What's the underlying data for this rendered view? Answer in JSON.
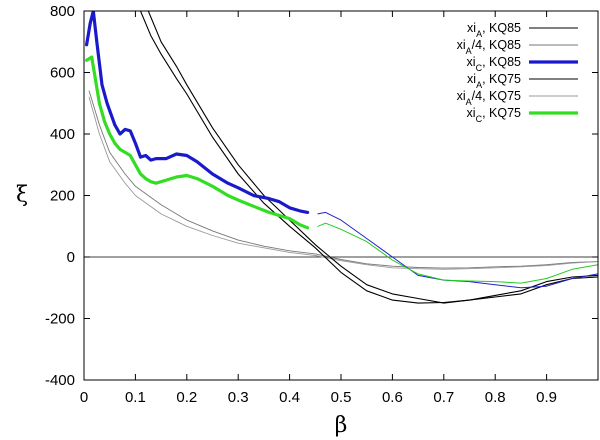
{
  "chart_data": {
    "type": "line",
    "xlabel": "β",
    "ylabel": "ξ",
    "xlim": [
      0,
      1.0
    ],
    "ylim": [
      -400,
      800
    ],
    "x_ticks": [
      0,
      0.1,
      0.2,
      0.3,
      0.4,
      0.5,
      0.6,
      0.7,
      0.8,
      0.9
    ],
    "x_tick_labels": [
      "0",
      "0.1",
      "0.2",
      "0.3",
      "0.4",
      "0.5",
      "0.6",
      "0.7",
      "0.8",
      "0.9"
    ],
    "y_ticks": [
      -400,
      -200,
      0,
      200,
      400,
      600,
      800
    ],
    "y_tick_labels": [
      "-400",
      "-200",
      "0",
      "200",
      "400",
      "600",
      "800"
    ],
    "zero_line": true,
    "grid": false,
    "legend_position": "top-right",
    "series": [
      {
        "name": "xi_A, KQ85",
        "legend_main": "xi",
        "legend_sub": "A",
        "legend_tail": ", KQ85",
        "color": "#000000",
        "width": 1.1,
        "x": [
          0.125,
          0.15,
          0.18,
          0.2,
          0.25,
          0.3,
          0.35,
          0.4,
          0.45,
          0.5,
          0.55,
          0.6,
          0.65,
          0.7,
          0.75,
          0.8,
          0.85,
          0.9,
          0.95,
          1.0
        ],
        "y": [
          800,
          700,
          620,
          560,
          420,
          300,
          200,
          120,
          40,
          -30,
          -90,
          -120,
          -135,
          -150,
          -140,
          -125,
          -110,
          -80,
          -65,
          -60
        ]
      },
      {
        "name": "xi_A/4, KQ85",
        "legend_main": "xi",
        "legend_sub": "A",
        "legend_tail": "/4, KQ85",
        "color": "#777777",
        "width": 0.9,
        "x": [
          0.01,
          0.03,
          0.05,
          0.08,
          0.1,
          0.15,
          0.2,
          0.25,
          0.3,
          0.35,
          0.4,
          0.45,
          0.5,
          0.55,
          0.6,
          0.65,
          0.7,
          0.75,
          0.8,
          0.85,
          0.9,
          0.95,
          1.0
        ],
        "y": [
          540,
          430,
          340,
          270,
          230,
          170,
          120,
          85,
          55,
          35,
          20,
          10,
          -8,
          -22,
          -30,
          -34,
          -36,
          -35,
          -32,
          -30,
          -25,
          -18,
          -15
        ]
      },
      {
        "name": "xi_C, KQ85",
        "legend_main": "xi",
        "legend_sub": "C",
        "legend_tail": ", KQ85",
        "color": "#1a1acc",
        "width": 3.2,
        "x": [
          0.005,
          0.012,
          0.018,
          0.025,
          0.035,
          0.045,
          0.06,
          0.07,
          0.08,
          0.09,
          0.1,
          0.11,
          0.12,
          0.13,
          0.14,
          0.16,
          0.18,
          0.2,
          0.22,
          0.25,
          0.28,
          0.3,
          0.33,
          0.36,
          0.38,
          0.4,
          0.42,
          0.435
        ],
        "y": [
          690,
          760,
          800,
          700,
          560,
          500,
          430,
          400,
          415,
          410,
          370,
          325,
          330,
          315,
          320,
          320,
          335,
          330,
          310,
          270,
          240,
          225,
          200,
          190,
          180,
          160,
          150,
          145
        ]
      },
      {
        "name": "xi_C, KQ85 (thin)",
        "legend_main": "",
        "legend_sub": "",
        "legend_tail": "",
        "color": "#2222cc",
        "width": 1.0,
        "x": [
          0.455,
          0.47,
          0.5,
          0.55,
          0.6,
          0.65,
          0.7,
          0.75,
          0.8,
          0.85,
          0.9,
          0.95,
          1.0
        ],
        "y": [
          140,
          145,
          120,
          60,
          0,
          -60,
          -75,
          -80,
          -90,
          -100,
          -95,
          -70,
          -55
        ]
      },
      {
        "name": "xi_A, KQ75",
        "legend_main": "xi",
        "legend_sub": "A",
        "legend_tail": ", KQ75",
        "color": "#000000",
        "width": 1.1,
        "x": [
          0.11,
          0.13,
          0.15,
          0.18,
          0.2,
          0.25,
          0.3,
          0.35,
          0.4,
          0.45,
          0.5,
          0.55,
          0.6,
          0.65,
          0.7,
          0.75,
          0.8,
          0.85,
          0.9,
          0.95,
          1.0
        ],
        "y": [
          800,
          720,
          660,
          580,
          530,
          390,
          270,
          175,
          100,
          30,
          -50,
          -110,
          -140,
          -150,
          -148,
          -140,
          -130,
          -120,
          -90,
          -70,
          -65
        ]
      },
      {
        "name": "xi_A/4, KQ75",
        "legend_main": "xi",
        "legend_sub": "A",
        "legend_tail": "/4, KQ75",
        "color": "#999999",
        "width": 0.9,
        "x": [
          0.01,
          0.03,
          0.05,
          0.08,
          0.1,
          0.15,
          0.2,
          0.25,
          0.3,
          0.35,
          0.4,
          0.45,
          0.5,
          0.55,
          0.6,
          0.65,
          0.7,
          0.75,
          0.8,
          0.85,
          0.9,
          0.95,
          1.0
        ],
        "y": [
          520,
          400,
          310,
          240,
          200,
          140,
          100,
          70,
          45,
          30,
          15,
          5,
          -12,
          -25,
          -35,
          -38,
          -40,
          -38,
          -35,
          -32,
          -28,
          -20,
          -15
        ]
      },
      {
        "name": "xi_C, KQ75",
        "legend_main": "xi",
        "legend_sub": "C",
        "legend_tail": ", KQ75",
        "color": "#33dd22",
        "width": 3.2,
        "x": [
          0.005,
          0.015,
          0.02,
          0.03,
          0.04,
          0.05,
          0.06,
          0.07,
          0.08,
          0.09,
          0.1,
          0.11,
          0.12,
          0.13,
          0.14,
          0.16,
          0.18,
          0.2,
          0.22,
          0.25,
          0.28,
          0.3,
          0.33,
          0.36,
          0.38,
          0.4,
          0.42,
          0.435
        ],
        "y": [
          640,
          650,
          600,
          500,
          440,
          400,
          370,
          350,
          340,
          330,
          300,
          270,
          255,
          245,
          240,
          250,
          260,
          265,
          255,
          230,
          200,
          185,
          165,
          145,
          135,
          125,
          105,
          95
        ]
      },
      {
        "name": "xi_C, KQ75 (thin)",
        "legend_main": "",
        "legend_sub": "",
        "legend_tail": "",
        "color": "#22cc22",
        "width": 1.0,
        "x": [
          0.455,
          0.47,
          0.5,
          0.55,
          0.6,
          0.65,
          0.7,
          0.75,
          0.8,
          0.85,
          0.9,
          0.95,
          1.0
        ],
        "y": [
          100,
          110,
          90,
          50,
          -10,
          -55,
          -75,
          -78,
          -80,
          -85,
          -70,
          -40,
          -25
        ]
      }
    ]
  }
}
